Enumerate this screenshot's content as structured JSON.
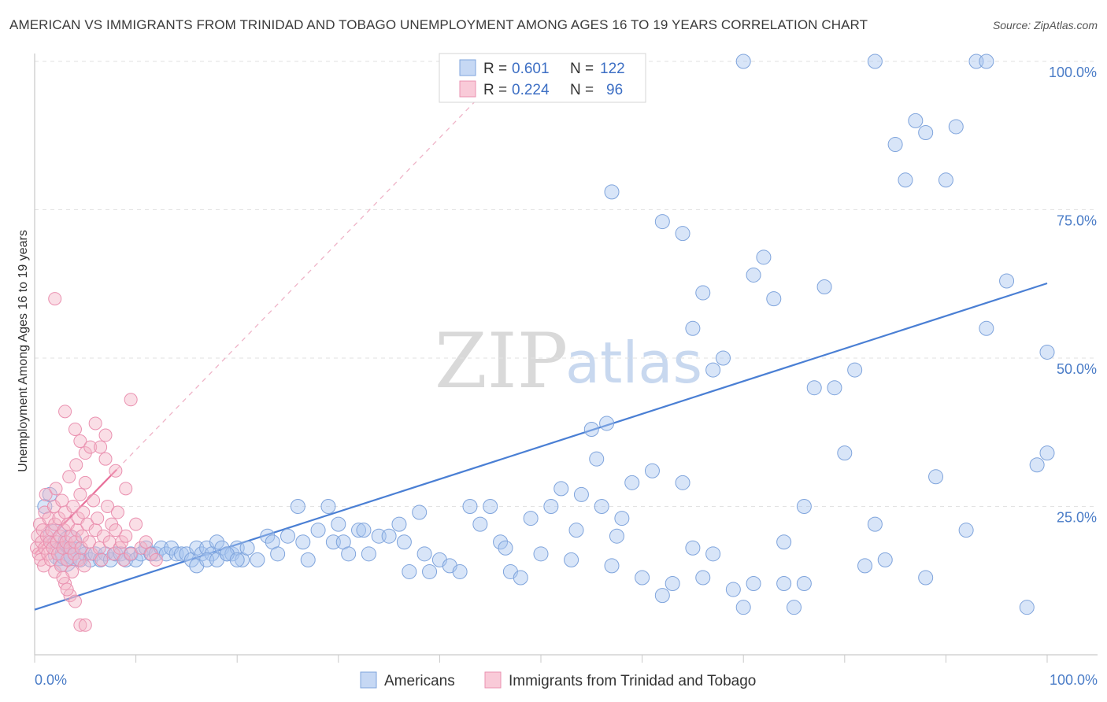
{
  "title": "AMERICAN VS IMMIGRANTS FROM TRINIDAD AND TOBAGO UNEMPLOYMENT AMONG AGES 16 TO 19 YEARS CORRELATION CHART",
  "source": "Source: ZipAtlas.com",
  "watermark": {
    "zip": "ZIP",
    "atlas": "atlas"
  },
  "legend_top": [
    {
      "r_label": "R =",
      "r": "0.601",
      "n_label": "N =",
      "n": "122",
      "color": "#a9c5ef"
    },
    {
      "r_label": "R =",
      "r": "0.224",
      "n_label": "N =",
      "n": "96",
      "color": "#f4b6c8"
    }
  ],
  "legend_bottom": [
    {
      "label": "Americans",
      "color": "#a9c5ef"
    },
    {
      "label": "Immigrants from Trinidad and Tobago",
      "color": "#f4b6c8"
    }
  ],
  "chart_data": {
    "type": "scatter",
    "title": "AMERICAN VS IMMIGRANTS FROM TRINIDAD AND TOBAGO UNEMPLOYMENT AMONG AGES 16 TO 19 YEARS CORRELATION CHART",
    "xlabel": "",
    "ylabel": "Unemployment Among Ages 16 to 19 years",
    "xlim": [
      0,
      100
    ],
    "ylim": [
      0,
      100
    ],
    "x_tick_labels": [
      "0.0%",
      "100.0%"
    ],
    "y_tick_labels": [
      "25.0%",
      "50.0%",
      "75.0%",
      "100.0%"
    ],
    "y_ticks": [
      25,
      50,
      75,
      100
    ],
    "grid": true,
    "colors": {
      "americans": "#4a7fd4",
      "trinidad": "#e8709a"
    },
    "series": [
      {
        "name": "Americans",
        "r": 0.601,
        "n": 122,
        "trend": {
          "x": [
            0,
            100
          ],
          "y": [
            7.6,
            62.6
          ]
        },
        "points": [
          [
            1,
            25
          ],
          [
            1.5,
            27
          ],
          [
            2,
            20
          ],
          [
            2.5,
            17
          ],
          [
            3,
            16
          ],
          [
            3.2,
            17
          ],
          [
            3.5,
            19
          ],
          [
            4,
            17
          ],
          [
            4.5,
            16
          ],
          [
            5,
            17
          ],
          [
            5.5,
            16
          ],
          [
            6,
            17
          ],
          [
            6.5,
            16
          ],
          [
            7,
            17
          ],
          [
            7.5,
            16
          ],
          [
            8,
            17
          ],
          [
            8.5,
            17
          ],
          [
            9,
            16
          ],
          [
            9.5,
            17
          ],
          [
            10,
            16
          ],
          [
            10.5,
            17
          ],
          [
            11,
            18
          ],
          [
            11.5,
            17
          ],
          [
            12,
            17
          ],
          [
            12.5,
            18
          ],
          [
            13,
            17
          ],
          [
            13.5,
            18
          ],
          [
            14,
            17
          ],
          [
            14.5,
            17
          ],
          [
            15,
            17
          ],
          [
            15.5,
            16
          ],
          [
            16,
            18
          ],
          [
            16.5,
            17
          ],
          [
            17,
            18
          ],
          [
            17.5,
            17
          ],
          [
            18,
            19
          ],
          [
            18.5,
            18
          ],
          [
            19,
            17
          ],
          [
            19.5,
            17
          ],
          [
            20,
            18
          ],
          [
            20.5,
            16
          ],
          [
            21,
            18
          ],
          [
            16,
            15
          ],
          [
            17,
            16
          ],
          [
            18,
            16
          ],
          [
            19,
            17
          ],
          [
            20,
            16
          ],
          [
            22,
            16
          ],
          [
            23,
            20
          ],
          [
            23.5,
            19
          ],
          [
            24,
            17
          ],
          [
            25,
            20
          ],
          [
            26,
            25
          ],
          [
            26.5,
            19
          ],
          [
            27,
            16
          ],
          [
            28,
            21
          ],
          [
            29,
            25
          ],
          [
            29.5,
            19
          ],
          [
            30,
            22
          ],
          [
            30.5,
            19
          ],
          [
            31,
            17
          ],
          [
            32,
            21
          ],
          [
            32.5,
            21
          ],
          [
            33,
            17
          ],
          [
            34,
            20
          ],
          [
            35,
            20
          ],
          [
            36,
            22
          ],
          [
            36.5,
            19
          ],
          [
            37,
            14
          ],
          [
            38,
            24
          ],
          [
            38.5,
            17
          ],
          [
            39,
            14
          ],
          [
            40,
            16
          ],
          [
            41,
            15
          ],
          [
            42,
            14
          ],
          [
            43,
            25
          ],
          [
            44,
            22
          ],
          [
            45,
            25
          ],
          [
            46,
            19
          ],
          [
            46.5,
            18
          ],
          [
            47,
            14
          ],
          [
            48,
            13
          ],
          [
            49,
            23
          ],
          [
            50,
            17
          ],
          [
            51,
            25
          ],
          [
            52,
            28
          ],
          [
            53,
            16
          ],
          [
            53.5,
            21
          ],
          [
            54,
            27
          ],
          [
            55,
            38
          ],
          [
            55.5,
            33
          ],
          [
            56,
            25
          ],
          [
            56.5,
            39
          ],
          [
            57,
            15
          ],
          [
            57.5,
            20
          ],
          [
            58,
            23
          ],
          [
            59,
            29
          ],
          [
            60,
            13
          ],
          [
            61,
            31
          ],
          [
            62,
            10
          ],
          [
            63,
            12
          ],
          [
            64,
            29
          ],
          [
            65,
            55
          ],
          [
            66,
            61
          ],
          [
            67,
            48
          ],
          [
            68,
            50
          ],
          [
            70,
            8
          ],
          [
            71,
            64
          ],
          [
            72,
            67
          ],
          [
            73,
            60
          ],
          [
            74,
            19
          ],
          [
            75,
            8
          ],
          [
            76,
            25
          ],
          [
            77,
            45
          ],
          [
            78,
            62
          ],
          [
            79,
            45
          ],
          [
            80,
            34
          ],
          [
            81,
            48
          ],
          [
            82,
            15
          ],
          [
            83,
            22
          ],
          [
            84,
            16
          ],
          [
            85,
            86
          ],
          [
            86,
            80
          ],
          [
            87,
            90
          ],
          [
            88,
            13
          ],
          [
            89,
            30
          ],
          [
            90,
            80
          ],
          [
            91,
            89
          ],
          [
            92,
            21
          ],
          [
            94,
            55
          ],
          [
            96,
            63
          ],
          [
            98,
            8
          ],
          [
            99,
            32
          ],
          [
            70,
            100
          ],
          [
            83,
            100
          ],
          [
            93,
            100
          ],
          [
            94,
            100
          ],
          [
            100,
            51
          ],
          [
            66,
            13
          ],
          [
            71,
            12
          ],
          [
            76,
            12
          ],
          [
            69,
            11
          ],
          [
            74,
            12
          ],
          [
            65,
            18
          ],
          [
            67,
            17
          ],
          [
            62,
            73
          ],
          [
            64,
            71
          ],
          [
            57,
            78
          ],
          [
            88,
            88
          ],
          [
            100,
            34
          ]
        ]
      },
      {
        "name": "Immigrants from Trinidad and Tobago",
        "r": 0.224,
        "n": 96,
        "trend": {
          "x": [
            0,
            8.1
          ],
          "y": [
            17.0,
            31.2
          ]
        },
        "points": [
          [
            0.2,
            18
          ],
          [
            0.3,
            20
          ],
          [
            0.4,
            17
          ],
          [
            0.5,
            22
          ],
          [
            0.6,
            16
          ],
          [
            0.7,
            19
          ],
          [
            0.8,
            21
          ],
          [
            0.9,
            15
          ],
          [
            1,
            18
          ],
          [
            1,
            24
          ],
          [
            1.1,
            27
          ],
          [
            1.2,
            20
          ],
          [
            1.3,
            17
          ],
          [
            1.4,
            23
          ],
          [
            1.5,
            19
          ],
          [
            1.6,
            16
          ],
          [
            1.7,
            21
          ],
          [
            1.8,
            18
          ],
          [
            1.9,
            25
          ],
          [
            2,
            22
          ],
          [
            2,
            14
          ],
          [
            2.1,
            28
          ],
          [
            2.2,
            19
          ],
          [
            2.3,
            17
          ],
          [
            2.4,
            23
          ],
          [
            2.5,
            20
          ],
          [
            2.6,
            15
          ],
          [
            2.7,
            26
          ],
          [
            2.8,
            18
          ],
          [
            2.9,
            21
          ],
          [
            3,
            24
          ],
          [
            3,
            12
          ],
          [
            3.1,
            19
          ],
          [
            3.2,
            16
          ],
          [
            3.3,
            22
          ],
          [
            3.4,
            30
          ],
          [
            3.5,
            18
          ],
          [
            3.6,
            20
          ],
          [
            3.7,
            14
          ],
          [
            3.8,
            25
          ],
          [
            3.9,
            17
          ],
          [
            4,
            19
          ],
          [
            4.1,
            32
          ],
          [
            4.2,
            21
          ],
          [
            4.3,
            23
          ],
          [
            4.4,
            16
          ],
          [
            4.5,
            27
          ],
          [
            4.6,
            18
          ],
          [
            4.7,
            20
          ],
          [
            4.8,
            24
          ],
          [
            4.9,
            15
          ],
          [
            5,
            29
          ],
          [
            5.2,
            22
          ],
          [
            5.4,
            19
          ],
          [
            5.6,
            17
          ],
          [
            5.8,
            26
          ],
          [
            6,
            21
          ],
          [
            6.2,
            23
          ],
          [
            6.4,
            18
          ],
          [
            6.6,
            16
          ],
          [
            6.8,
            20
          ],
          [
            7,
            33
          ],
          [
            7.2,
            25
          ],
          [
            7.4,
            19
          ],
          [
            7.6,
            22
          ],
          [
            7.8,
            17
          ],
          [
            8,
            21
          ],
          [
            8.2,
            24
          ],
          [
            8.4,
            18
          ],
          [
            8.6,
            19
          ],
          [
            8.8,
            16
          ],
          [
            9,
            20
          ],
          [
            9.5,
            17
          ],
          [
            10,
            22
          ],
          [
            10.5,
            18
          ],
          [
            11,
            19
          ],
          [
            11.5,
            17
          ],
          [
            12,
            16
          ],
          [
            2,
            60
          ],
          [
            3,
            41
          ],
          [
            4,
            38
          ],
          [
            4.5,
            36
          ],
          [
            5,
            34
          ],
          [
            5.5,
            35
          ],
          [
            6,
            39
          ],
          [
            6.5,
            35
          ],
          [
            7,
            37
          ],
          [
            8,
            31
          ],
          [
            9,
            28
          ],
          [
            3.5,
            10
          ],
          [
            4,
            9
          ],
          [
            4.5,
            5
          ],
          [
            5,
            5
          ],
          [
            3.2,
            11
          ],
          [
            2.8,
            13
          ],
          [
            9.5,
            43
          ]
        ]
      }
    ]
  }
}
